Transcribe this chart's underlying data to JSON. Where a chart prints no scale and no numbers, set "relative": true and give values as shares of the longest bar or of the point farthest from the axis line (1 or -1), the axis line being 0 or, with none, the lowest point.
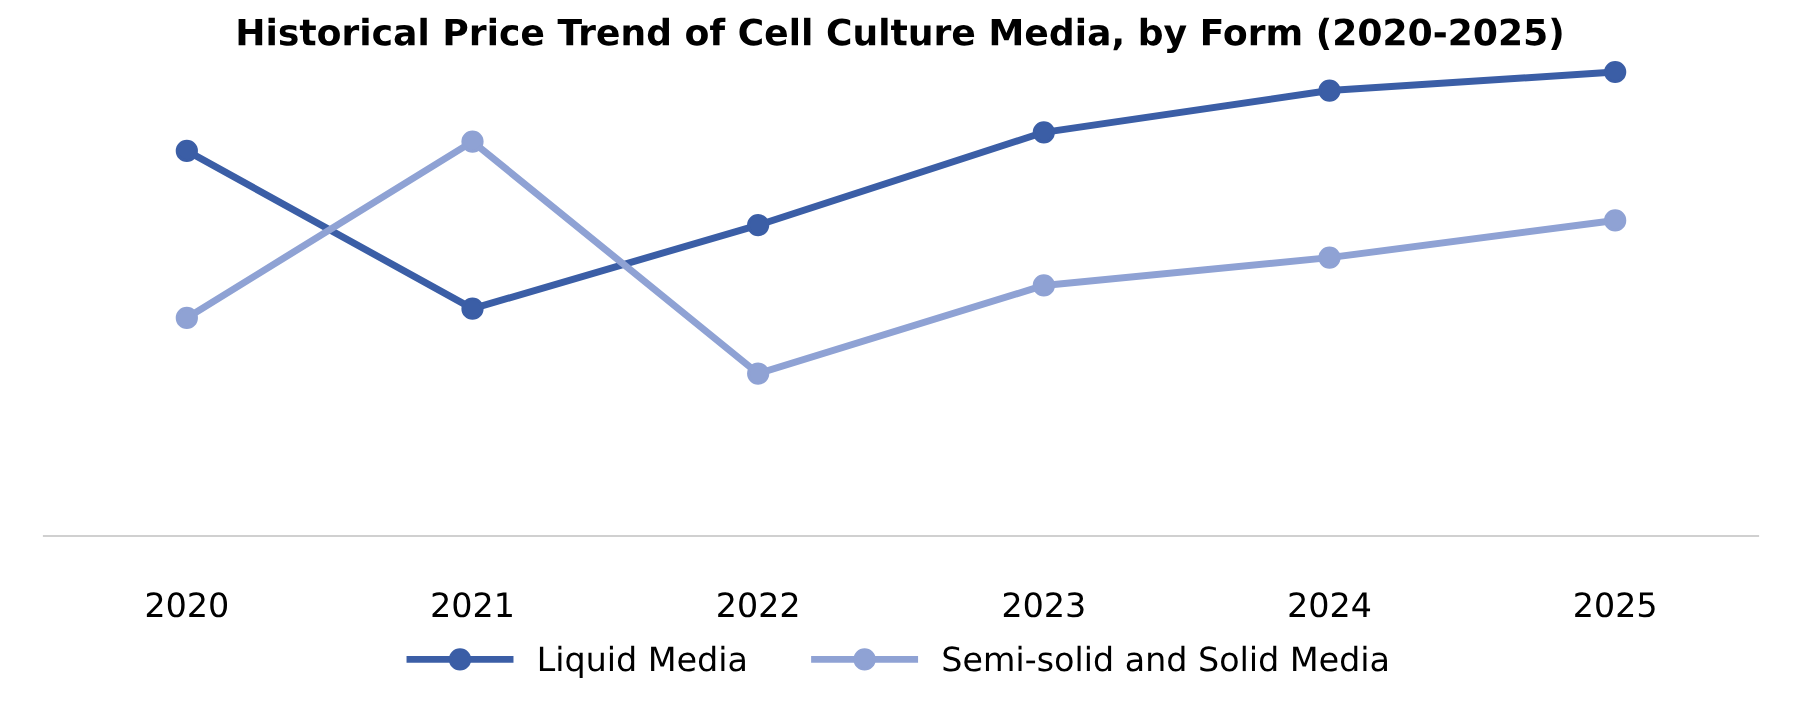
{
  "chart_data": {
    "type": "line",
    "title": "Historical Price Trend of Cell Culture Media, by Form (2020-2025)",
    "categories": [
      "2020",
      "2021",
      "2022",
      "2023",
      "2024",
      "2025"
    ],
    "relative": true,
    "series": [
      {
        "name": "Liquid Media",
        "color": "#3b5ea6",
        "values": [
          0.83,
          0.49,
          0.67,
          0.87,
          0.96,
          1.0
        ]
      },
      {
        "name": "Semi-solid and Solid Media",
        "color": "#8fa2d4",
        "values": [
          0.47,
          0.85,
          0.35,
          0.54,
          0.6,
          0.68
        ]
      }
    ],
    "marker": "circle",
    "line_style": "solid",
    "grid": false,
    "legend": "bottom"
  }
}
